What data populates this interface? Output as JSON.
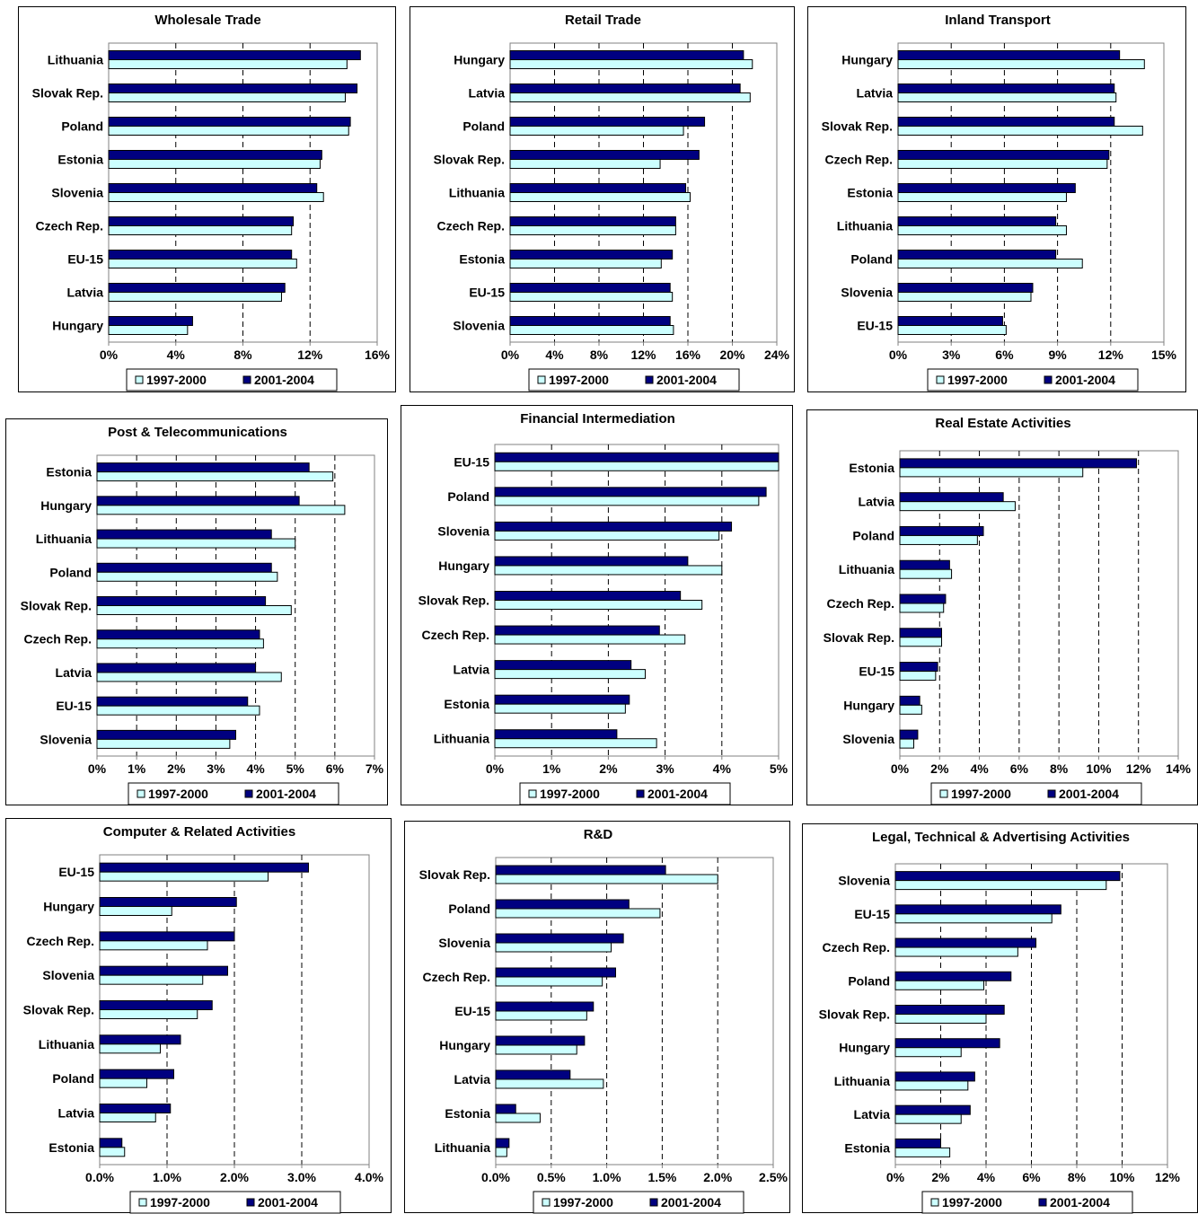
{
  "colors": {
    "series_1997_2000": "#ccffff",
    "series_2001_2004": "#000080",
    "outline": "#000000"
  },
  "chart_data": [
    {
      "type": "bar",
      "orientation": "horizontal",
      "title": "Wholesale Trade",
      "categories": [
        "Lithuania",
        "Slovak Rep.",
        "Poland",
        "Estonia",
        "Slovenia",
        "Czech Rep.",
        "EU-15",
        "Latvia",
        "Hungary"
      ],
      "series": [
        {
          "name": "1997-2000",
          "values": [
            14.2,
            14.1,
            14.3,
            12.6,
            12.8,
            10.9,
            11.2,
            10.3,
            4.7
          ]
        },
        {
          "name": "2001-2004",
          "values": [
            15.0,
            14.8,
            14.4,
            12.7,
            12.4,
            11.0,
            10.9,
            10.5,
            5.0
          ]
        }
      ],
      "xlim": [
        0,
        16
      ],
      "xticks": [
        0,
        4,
        8,
        12,
        16
      ],
      "tick_labels": [
        "0%",
        "4%",
        "8%",
        "12%",
        "16%"
      ],
      "grid": true,
      "legend": "bottom"
    },
    {
      "type": "bar",
      "orientation": "horizontal",
      "title": "Retail Trade",
      "categories": [
        "Hungary",
        "Latvia",
        "Poland",
        "Slovak Rep.",
        "Lithuania",
        "Czech Rep.",
        "Estonia",
        "EU-15",
        "Slovenia"
      ],
      "series": [
        {
          "name": "1997-2000",
          "values": [
            21.8,
            21.6,
            15.6,
            13.5,
            16.2,
            14.9,
            13.6,
            14.6,
            14.7
          ]
        },
        {
          "name": "2001-2004",
          "values": [
            21.0,
            20.7,
            17.5,
            17.0,
            15.8,
            14.9,
            14.6,
            14.4,
            14.4
          ]
        }
      ],
      "xlim": [
        0,
        24
      ],
      "xticks": [
        0,
        4,
        8,
        12,
        16,
        20,
        24
      ],
      "tick_labels": [
        "0%",
        "4%",
        "8%",
        "12%",
        "16%",
        "20%",
        "24%"
      ],
      "grid": true,
      "legend": "bottom"
    },
    {
      "type": "bar",
      "orientation": "horizontal",
      "title": "Inland Transport",
      "categories": [
        "Hungary",
        "Latvia",
        "Slovak Rep.",
        "Czech Rep.",
        "Estonia",
        "Lithuania",
        "Poland",
        "Slovenia",
        "EU-15"
      ],
      "series": [
        {
          "name": "1997-2000",
          "values": [
            13.9,
            12.3,
            13.8,
            11.8,
            9.5,
            9.5,
            10.4,
            7.5,
            6.1
          ]
        },
        {
          "name": "2001-2004",
          "values": [
            12.5,
            12.2,
            12.2,
            11.9,
            10.0,
            8.9,
            8.9,
            7.6,
            5.9
          ]
        }
      ],
      "xlim": [
        0,
        15
      ],
      "xticks": [
        0,
        3,
        6,
        9,
        12,
        15
      ],
      "tick_labels": [
        "0%",
        "3%",
        "6%",
        "9%",
        "12%",
        "15%"
      ],
      "grid": true,
      "legend": "bottom"
    },
    {
      "type": "bar",
      "orientation": "horizontal",
      "title": "Post & Telecommunications",
      "categories": [
        "Estonia",
        "Hungary",
        "Lithuania",
        "Poland",
        "Slovak Rep.",
        "Czech Rep.",
        "Latvia",
        "EU-15",
        "Slovenia"
      ],
      "series": [
        {
          "name": "1997-2000",
          "values": [
            5.95,
            6.25,
            5.0,
            4.55,
            4.9,
            4.2,
            4.65,
            4.1,
            3.35
          ]
        },
        {
          "name": "2001-2004",
          "values": [
            5.35,
            5.1,
            4.4,
            4.4,
            4.25,
            4.1,
            4.0,
            3.8,
            3.5
          ]
        }
      ],
      "xlim": [
        0,
        7
      ],
      "xticks": [
        0,
        1,
        2,
        3,
        4,
        5,
        6,
        7
      ],
      "tick_labels": [
        "0%",
        "1%",
        "2%",
        "3%",
        "4%",
        "5%",
        "6%",
        "7%"
      ],
      "grid": true,
      "legend": "bottom"
    },
    {
      "type": "bar",
      "orientation": "horizontal",
      "title": "Financial Intermediation",
      "categories": [
        "EU-15",
        "Poland",
        "Slovenia",
        "Hungary",
        "Slovak Rep.",
        "Czech Rep.",
        "Latvia",
        "Estonia",
        "Lithuania"
      ],
      "series": [
        {
          "name": "1997-2000",
          "values": [
            5.0,
            4.65,
            3.95,
            4.0,
            3.65,
            3.35,
            2.65,
            2.3,
            2.85
          ]
        },
        {
          "name": "2001-2004",
          "values": [
            5.0,
            4.78,
            4.17,
            3.4,
            3.27,
            2.9,
            2.4,
            2.37,
            2.15
          ]
        }
      ],
      "xlim": [
        0,
        5
      ],
      "xticks": [
        0,
        1,
        2,
        3,
        4,
        5
      ],
      "tick_labels": [
        "0%",
        "1%",
        "2%",
        "3%",
        "4%",
        "5%"
      ],
      "grid": true,
      "legend": "bottom"
    },
    {
      "type": "bar",
      "orientation": "horizontal",
      "title": "Real Estate Activities",
      "categories": [
        "Estonia",
        "Latvia",
        "Poland",
        "Lithuania",
        "Czech Rep.",
        "Slovak Rep.",
        "EU-15",
        "Hungary",
        "Slovenia"
      ],
      "series": [
        {
          "name": "1997-2000",
          "values": [
            9.2,
            5.8,
            3.9,
            2.6,
            2.2,
            2.1,
            1.8,
            1.1,
            0.7
          ]
        },
        {
          "name": "2001-2004",
          "values": [
            11.9,
            5.2,
            4.2,
            2.5,
            2.3,
            2.1,
            1.9,
            1.0,
            0.9
          ]
        }
      ],
      "xlim": [
        0,
        14
      ],
      "xticks": [
        0,
        2,
        4,
        6,
        8,
        10,
        12,
        14
      ],
      "tick_labels": [
        "0%",
        "2%",
        "4%",
        "6%",
        "8%",
        "10%",
        "12%",
        "14%"
      ],
      "grid": true,
      "legend": "bottom"
    },
    {
      "type": "bar",
      "orientation": "horizontal",
      "title": "Computer & Related Activities",
      "categories": [
        "EU-15",
        "Hungary",
        "Czech Rep.",
        "Slovenia",
        "Slovak Rep.",
        "Lithuania",
        "Poland",
        "Latvia",
        "Estonia"
      ],
      "series": [
        {
          "name": "1997-2000",
          "values": [
            2.5,
            1.07,
            1.6,
            1.53,
            1.45,
            0.9,
            0.7,
            0.83,
            0.37
          ]
        },
        {
          "name": "2001-2004",
          "values": [
            3.1,
            2.03,
            2.0,
            1.9,
            1.67,
            1.2,
            1.1,
            1.05,
            0.33
          ]
        }
      ],
      "xlim": [
        0,
        4
      ],
      "xticks": [
        0,
        1,
        2,
        3,
        4
      ],
      "tick_labels": [
        "0.0%",
        "1.0%",
        "2.0%",
        "3.0%",
        "4.0%"
      ],
      "grid": true,
      "legend": "bottom"
    },
    {
      "type": "bar",
      "orientation": "horizontal",
      "title": "R&D",
      "categories": [
        "Slovak Rep.",
        "Poland",
        "Slovenia",
        "Czech Rep.",
        "EU-15",
        "Hungary",
        "Latvia",
        "Estonia",
        "Lithuania"
      ],
      "series": [
        {
          "name": "1997-2000",
          "values": [
            2.0,
            1.48,
            1.04,
            0.96,
            0.82,
            0.73,
            0.97,
            0.4,
            0.1
          ]
        },
        {
          "name": "2001-2004",
          "values": [
            1.53,
            1.2,
            1.15,
            1.08,
            0.88,
            0.8,
            0.67,
            0.18,
            0.12
          ]
        }
      ],
      "xlim": [
        0,
        2.5
      ],
      "xticks": [
        0,
        0.5,
        1,
        1.5,
        2,
        2.5
      ],
      "tick_labels": [
        "0.0%",
        "0.5%",
        "1.0%",
        "1.5%",
        "2.0%",
        "2.5%"
      ],
      "grid": true,
      "legend": "bottom"
    },
    {
      "type": "bar",
      "orientation": "horizontal",
      "title": "Legal, Technical & Advertising Activities",
      "categories": [
        "Slovenia",
        "EU-15",
        "Czech Rep.",
        "Poland",
        "Slovak Rep.",
        "Hungary",
        "Lithuania",
        "Latvia",
        "Estonia"
      ],
      "series": [
        {
          "name": "1997-2000",
          "values": [
            9.3,
            6.9,
            5.4,
            3.9,
            4.0,
            2.9,
            3.2,
            2.9,
            2.4
          ]
        },
        {
          "name": "2001-2004",
          "values": [
            9.9,
            7.3,
            6.2,
            5.1,
            4.8,
            4.6,
            3.5,
            3.3,
            2.0
          ]
        }
      ],
      "xlim": [
        0,
        12
      ],
      "xticks": [
        0,
        2,
        4,
        6,
        8,
        10,
        12
      ],
      "tick_labels": [
        "0%",
        "2%",
        "4%",
        "6%",
        "8%",
        "10%",
        "12%"
      ],
      "grid": true,
      "legend": "bottom"
    }
  ]
}
